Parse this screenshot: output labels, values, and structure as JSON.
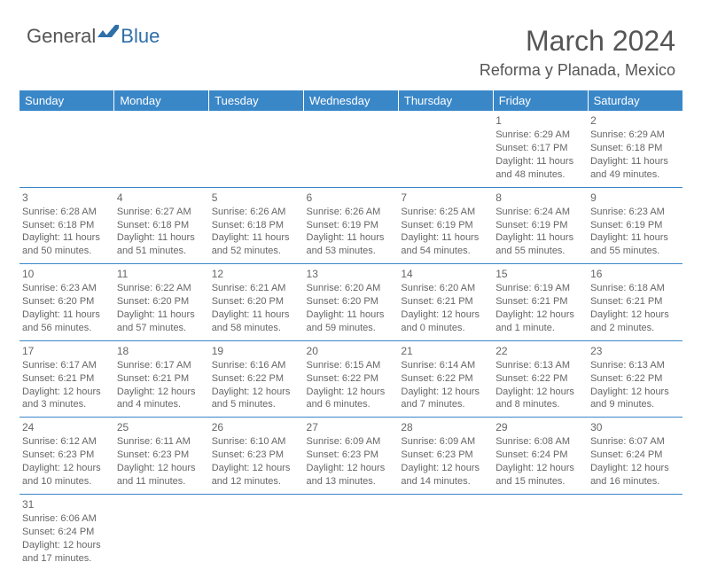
{
  "logo": {
    "general": "General",
    "blue": "Blue"
  },
  "title": "March 2024",
  "location": "Reforma y Planada, Mexico",
  "colors": {
    "header_bg": "#3a87c8",
    "header_text": "#ffffff",
    "text": "#555555",
    "rule": "#3a87c8",
    "logo_blue": "#2f6fa8"
  },
  "dayHeaders": [
    "Sunday",
    "Monday",
    "Tuesday",
    "Wednesday",
    "Thursday",
    "Friday",
    "Saturday"
  ],
  "weeks": [
    [
      null,
      null,
      null,
      null,
      null,
      {
        "n": "1",
        "sr": "Sunrise: 6:29 AM",
        "ss": "Sunset: 6:17 PM",
        "d1": "Daylight: 11 hours",
        "d2": "and 48 minutes."
      },
      {
        "n": "2",
        "sr": "Sunrise: 6:29 AM",
        "ss": "Sunset: 6:18 PM",
        "d1": "Daylight: 11 hours",
        "d2": "and 49 minutes."
      }
    ],
    [
      {
        "n": "3",
        "sr": "Sunrise: 6:28 AM",
        "ss": "Sunset: 6:18 PM",
        "d1": "Daylight: 11 hours",
        "d2": "and 50 minutes."
      },
      {
        "n": "4",
        "sr": "Sunrise: 6:27 AM",
        "ss": "Sunset: 6:18 PM",
        "d1": "Daylight: 11 hours",
        "d2": "and 51 minutes."
      },
      {
        "n": "5",
        "sr": "Sunrise: 6:26 AM",
        "ss": "Sunset: 6:18 PM",
        "d1": "Daylight: 11 hours",
        "d2": "and 52 minutes."
      },
      {
        "n": "6",
        "sr": "Sunrise: 6:26 AM",
        "ss": "Sunset: 6:19 PM",
        "d1": "Daylight: 11 hours",
        "d2": "and 53 minutes."
      },
      {
        "n": "7",
        "sr": "Sunrise: 6:25 AM",
        "ss": "Sunset: 6:19 PM",
        "d1": "Daylight: 11 hours",
        "d2": "and 54 minutes."
      },
      {
        "n": "8",
        "sr": "Sunrise: 6:24 AM",
        "ss": "Sunset: 6:19 PM",
        "d1": "Daylight: 11 hours",
        "d2": "and 55 minutes."
      },
      {
        "n": "9",
        "sr": "Sunrise: 6:23 AM",
        "ss": "Sunset: 6:19 PM",
        "d1": "Daylight: 11 hours",
        "d2": "and 55 minutes."
      }
    ],
    [
      {
        "n": "10",
        "sr": "Sunrise: 6:23 AM",
        "ss": "Sunset: 6:20 PM",
        "d1": "Daylight: 11 hours",
        "d2": "and 56 minutes."
      },
      {
        "n": "11",
        "sr": "Sunrise: 6:22 AM",
        "ss": "Sunset: 6:20 PM",
        "d1": "Daylight: 11 hours",
        "d2": "and 57 minutes."
      },
      {
        "n": "12",
        "sr": "Sunrise: 6:21 AM",
        "ss": "Sunset: 6:20 PM",
        "d1": "Daylight: 11 hours",
        "d2": "and 58 minutes."
      },
      {
        "n": "13",
        "sr": "Sunrise: 6:20 AM",
        "ss": "Sunset: 6:20 PM",
        "d1": "Daylight: 11 hours",
        "d2": "and 59 minutes."
      },
      {
        "n": "14",
        "sr": "Sunrise: 6:20 AM",
        "ss": "Sunset: 6:21 PM",
        "d1": "Daylight: 12 hours",
        "d2": "and 0 minutes."
      },
      {
        "n": "15",
        "sr": "Sunrise: 6:19 AM",
        "ss": "Sunset: 6:21 PM",
        "d1": "Daylight: 12 hours",
        "d2": "and 1 minute."
      },
      {
        "n": "16",
        "sr": "Sunrise: 6:18 AM",
        "ss": "Sunset: 6:21 PM",
        "d1": "Daylight: 12 hours",
        "d2": "and 2 minutes."
      }
    ],
    [
      {
        "n": "17",
        "sr": "Sunrise: 6:17 AM",
        "ss": "Sunset: 6:21 PM",
        "d1": "Daylight: 12 hours",
        "d2": "and 3 minutes."
      },
      {
        "n": "18",
        "sr": "Sunrise: 6:17 AM",
        "ss": "Sunset: 6:21 PM",
        "d1": "Daylight: 12 hours",
        "d2": "and 4 minutes."
      },
      {
        "n": "19",
        "sr": "Sunrise: 6:16 AM",
        "ss": "Sunset: 6:22 PM",
        "d1": "Daylight: 12 hours",
        "d2": "and 5 minutes."
      },
      {
        "n": "20",
        "sr": "Sunrise: 6:15 AM",
        "ss": "Sunset: 6:22 PM",
        "d1": "Daylight: 12 hours",
        "d2": "and 6 minutes."
      },
      {
        "n": "21",
        "sr": "Sunrise: 6:14 AM",
        "ss": "Sunset: 6:22 PM",
        "d1": "Daylight: 12 hours",
        "d2": "and 7 minutes."
      },
      {
        "n": "22",
        "sr": "Sunrise: 6:13 AM",
        "ss": "Sunset: 6:22 PM",
        "d1": "Daylight: 12 hours",
        "d2": "and 8 minutes."
      },
      {
        "n": "23",
        "sr": "Sunrise: 6:13 AM",
        "ss": "Sunset: 6:22 PM",
        "d1": "Daylight: 12 hours",
        "d2": "and 9 minutes."
      }
    ],
    [
      {
        "n": "24",
        "sr": "Sunrise: 6:12 AM",
        "ss": "Sunset: 6:23 PM",
        "d1": "Daylight: 12 hours",
        "d2": "and 10 minutes."
      },
      {
        "n": "25",
        "sr": "Sunrise: 6:11 AM",
        "ss": "Sunset: 6:23 PM",
        "d1": "Daylight: 12 hours",
        "d2": "and 11 minutes."
      },
      {
        "n": "26",
        "sr": "Sunrise: 6:10 AM",
        "ss": "Sunset: 6:23 PM",
        "d1": "Daylight: 12 hours",
        "d2": "and 12 minutes."
      },
      {
        "n": "27",
        "sr": "Sunrise: 6:09 AM",
        "ss": "Sunset: 6:23 PM",
        "d1": "Daylight: 12 hours",
        "d2": "and 13 minutes."
      },
      {
        "n": "28",
        "sr": "Sunrise: 6:09 AM",
        "ss": "Sunset: 6:23 PM",
        "d1": "Daylight: 12 hours",
        "d2": "and 14 minutes."
      },
      {
        "n": "29",
        "sr": "Sunrise: 6:08 AM",
        "ss": "Sunset: 6:24 PM",
        "d1": "Daylight: 12 hours",
        "d2": "and 15 minutes."
      },
      {
        "n": "30",
        "sr": "Sunrise: 6:07 AM",
        "ss": "Sunset: 6:24 PM",
        "d1": "Daylight: 12 hours",
        "d2": "and 16 minutes."
      }
    ],
    [
      {
        "n": "31",
        "sr": "Sunrise: 6:06 AM",
        "ss": "Sunset: 6:24 PM",
        "d1": "Daylight: 12 hours",
        "d2": "and 17 minutes."
      },
      null,
      null,
      null,
      null,
      null,
      null
    ]
  ]
}
